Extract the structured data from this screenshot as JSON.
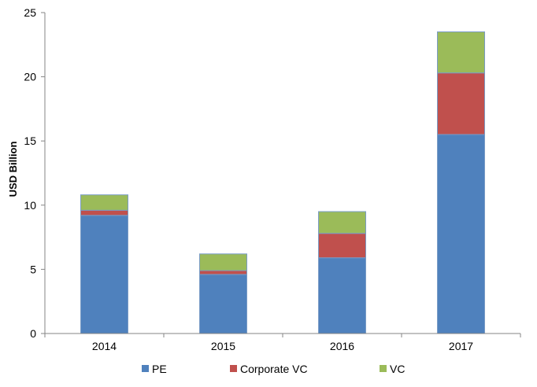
{
  "chart_data": {
    "type": "bar",
    "stacked": true,
    "categories": [
      "2014",
      "2015",
      "2016",
      "2017"
    ],
    "series": [
      {
        "name": "PE",
        "values": [
          9.2,
          4.6,
          5.9,
          15.5
        ],
        "color": "#4f81bd"
      },
      {
        "name": "Corporate VC",
        "values": [
          0.4,
          0.3,
          1.9,
          4.8
        ],
        "color": "#c0504d"
      },
      {
        "name": "VC",
        "values": [
          1.2,
          1.3,
          1.7,
          3.2
        ],
        "color": "#9bbb59"
      }
    ],
    "ylabel": "USD Billion",
    "ylim": [
      0,
      25
    ],
    "yticks": [
      0,
      5,
      10,
      15,
      20,
      25
    ],
    "grid": false,
    "legend_position": "bottom"
  }
}
